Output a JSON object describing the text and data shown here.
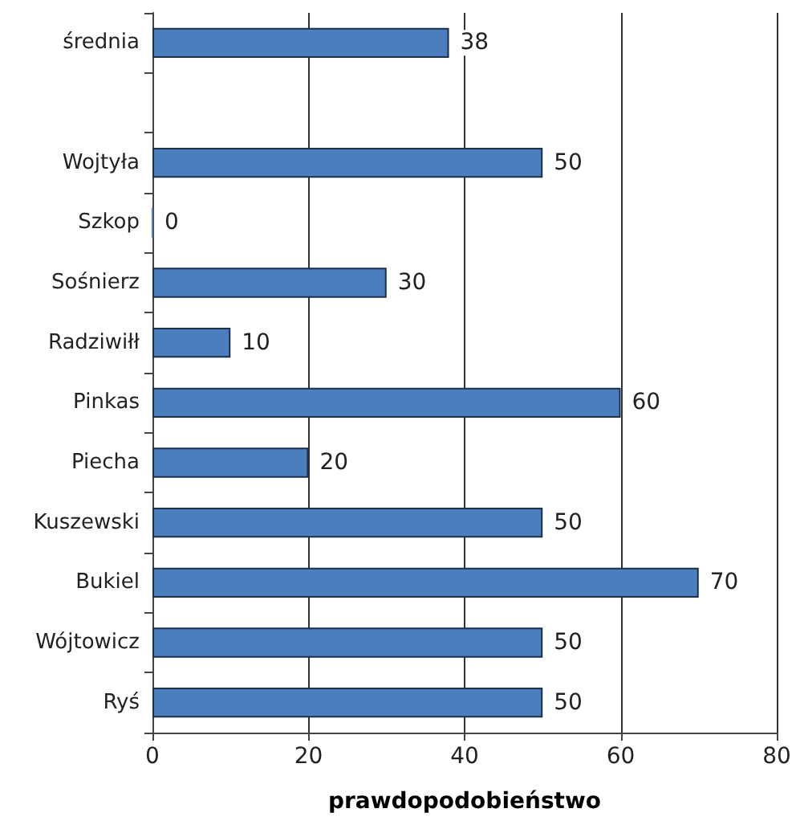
{
  "chart_data": {
    "type": "bar",
    "orientation": "horizontal",
    "xlabel": "prawdopodobieństwo",
    "categories": [
      "średnia",
      null,
      "Wojtyła",
      "Szkop",
      "Sośnierz",
      "Radziwiłł",
      "Pinkas",
      "Piecha",
      "Kuszewski",
      "Bukiel",
      "Wójtowicz",
      "Ryś"
    ],
    "values": [
      38,
      null,
      50,
      0,
      30,
      10,
      60,
      20,
      50,
      70,
      50,
      50
    ],
    "color": "#4a7ebf",
    "xlim": [
      0,
      80
    ],
    "xticks": [
      0,
      20,
      40,
      60,
      80
    ],
    "grid": "x",
    "data_labels": true
  }
}
